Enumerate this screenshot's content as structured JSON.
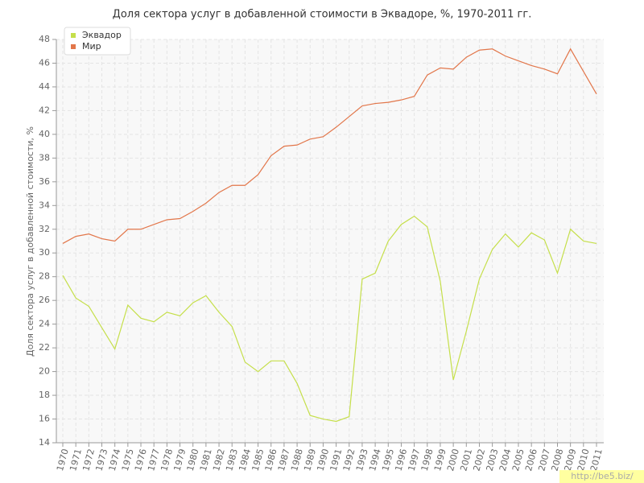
{
  "chart_data": {
    "type": "line",
    "title": "Доля сектора услуг в добавленной стоимости в Эквадоре, %, 1970-2011 гг.",
    "y_label": "Доля сектора услуг в добавленной стоимости, %",
    "x": [
      1970,
      1971,
      1972,
      1973,
      1974,
      1975,
      1976,
      1977,
      1978,
      1979,
      1980,
      1981,
      1982,
      1983,
      1984,
      1985,
      1986,
      1987,
      1988,
      1989,
      1990,
      1991,
      1992,
      1993,
      1994,
      1995,
      1996,
      1997,
      1998,
      1999,
      2000,
      2001,
      2002,
      2003,
      2004,
      2005,
      2006,
      2007,
      2008,
      2009,
      2010,
      2011
    ],
    "series": [
      {
        "name": "Эквадор",
        "color": "#c5df4a",
        "values": [
          28.1,
          26.2,
          25.5,
          23.7,
          21.9,
          25.6,
          24.5,
          24.2,
          25.0,
          24.7,
          25.8,
          26.4,
          25.0,
          23.8,
          20.8,
          20.0,
          20.9,
          20.9,
          19.0,
          16.3,
          16.0,
          15.8,
          16.2,
          27.8,
          28.3,
          31.0,
          32.4,
          33.1,
          32.2,
          27.6,
          19.3,
          23.4,
          27.8,
          30.3,
          31.6,
          30.5,
          31.7,
          31.1,
          28.3,
          32.0,
          31.0,
          30.8
        ]
      },
      {
        "name": "Мир",
        "color": "#e2764a",
        "values": [
          30.8,
          31.4,
          31.6,
          31.2,
          31.0,
          32.0,
          32.0,
          32.4,
          32.8,
          32.9,
          33.5,
          34.2,
          35.1,
          35.7,
          35.7,
          36.6,
          38.2,
          39.0,
          39.1,
          39.6,
          39.8,
          40.6,
          41.5,
          42.4,
          42.6,
          42.7,
          42.9,
          43.2,
          45.0,
          45.6,
          45.5,
          46.5,
          47.1,
          47.2,
          46.6,
          46.2,
          45.8,
          45.5,
          45.1,
          47.2,
          45.3,
          43.4
        ]
      }
    ],
    "ylim": [
      14,
      48
    ],
    "yticks": [
      14,
      16,
      18,
      20,
      22,
      24,
      26,
      28,
      30,
      32,
      34,
      36,
      38,
      40,
      42,
      44,
      46,
      48
    ],
    "grid": true,
    "legend": "top-left",
    "watermark": "http://be5.biz/"
  }
}
